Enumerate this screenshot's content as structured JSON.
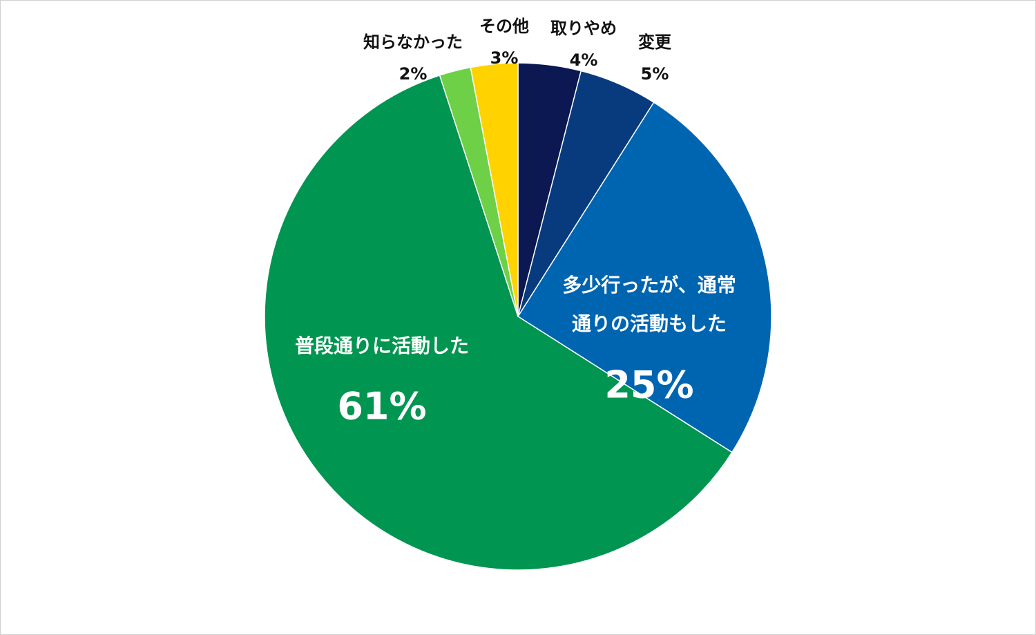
{
  "chart_data": {
    "type": "pie",
    "title": "",
    "slices": [
      {
        "label": "取りやめ",
        "value": 4,
        "value_label": "4%",
        "color": "#0B1852",
        "label_position": "outside"
      },
      {
        "label": "変更",
        "value": 5,
        "value_label": "5%",
        "color": "#073B7E",
        "label_position": "outside"
      },
      {
        "label": "多少行ったが、通常通りの活動もした",
        "label_lines": [
          "多少行ったが、通常",
          "通りの活動もした"
        ],
        "value": 25,
        "value_label": "25%",
        "color": "#0065B1",
        "label_position": "inside"
      },
      {
        "label": "普段通りに活動した",
        "label_lines": [
          "普段通りに活動した"
        ],
        "value": 61,
        "value_label": "61%",
        "color": "#009550",
        "label_position": "inside"
      },
      {
        "label": "知らなかった",
        "value": 2,
        "value_label": "2%",
        "color": "#6DD046",
        "label_position": "outside"
      },
      {
        "label": "その他",
        "value": 3,
        "value_label": "3%",
        "color": "#FFD200",
        "label_position": "outside"
      }
    ],
    "start_angle": "12 o'clock",
    "direction": "clockwise",
    "legend": "none"
  }
}
